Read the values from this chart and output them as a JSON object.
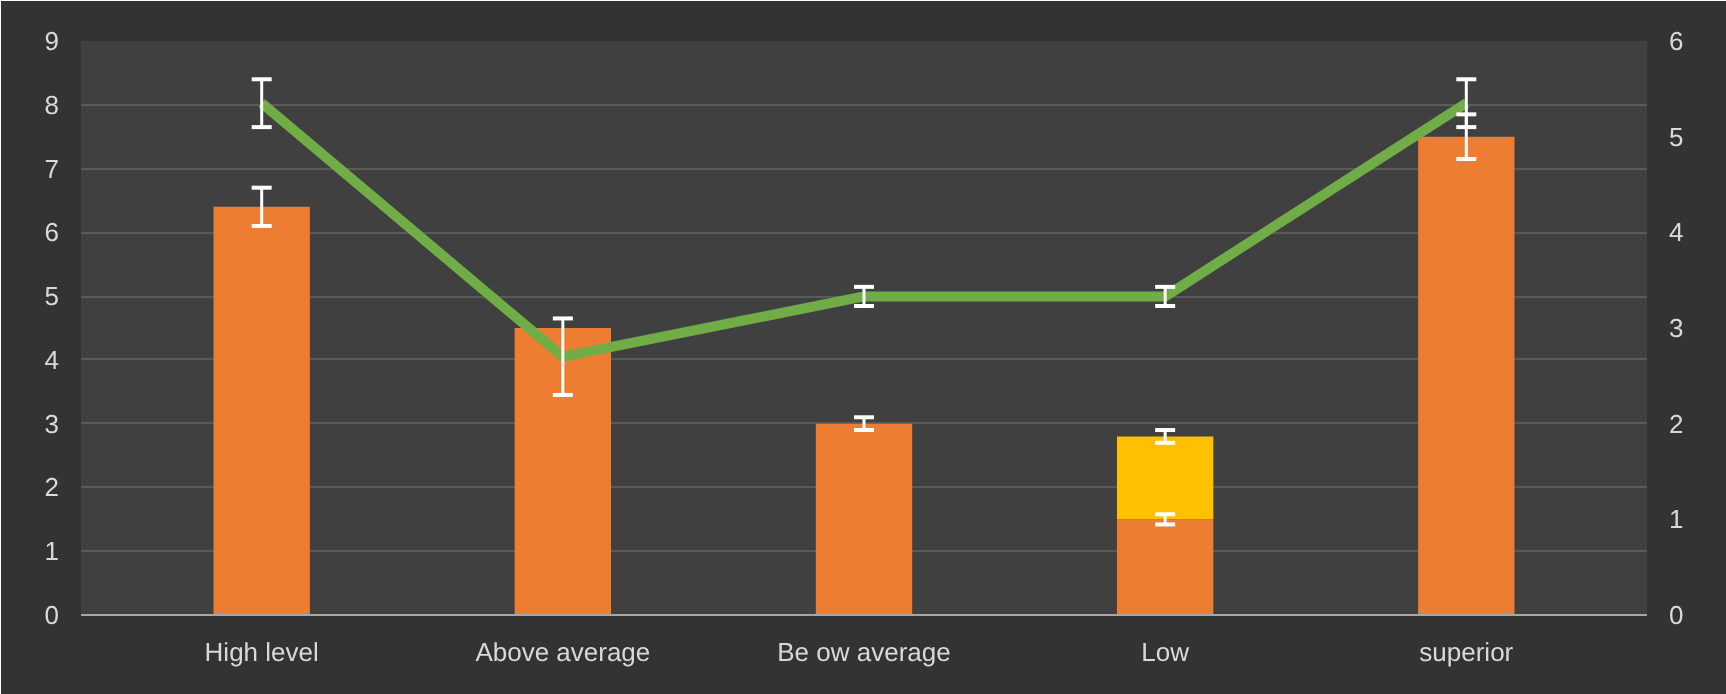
{
  "chart_data": {
    "type": "bar",
    "stacked": true,
    "categories": [
      "High level",
      "Above average",
      "Be ow average",
      "Low",
      "superior"
    ],
    "series": [
      {
        "color": "#ed7d31",
        "values": [
          6.4,
          4.5,
          3.0,
          1.5,
          7.5
        ],
        "errors": [
          0.3,
          null,
          0.1,
          0.08,
          0.35
        ]
      },
      {
        "color": "#ffc000",
        "values": [
          null,
          null,
          null,
          1.3,
          null
        ],
        "errors": [
          null,
          null,
          null,
          0.1,
          null
        ]
      },
      {
        "type": "line",
        "axis": "y2",
        "color": "#70ad47",
        "values": [
          5.35,
          2.7,
          3.33,
          3.33,
          5.35
        ],
        "errors": [
          0.25,
          0.4,
          0.1,
          0.1,
          0.25
        ]
      }
    ],
    "ylim": [
      0,
      9
    ],
    "yticks": [
      0,
      1,
      2,
      3,
      4,
      5,
      6,
      7,
      8,
      9
    ],
    "y2lim": [
      0,
      6
    ],
    "y2ticks": [
      0,
      1,
      2,
      3,
      4,
      5,
      6
    ],
    "grid": "y",
    "marker": "none",
    "line_style": "solid"
  }
}
